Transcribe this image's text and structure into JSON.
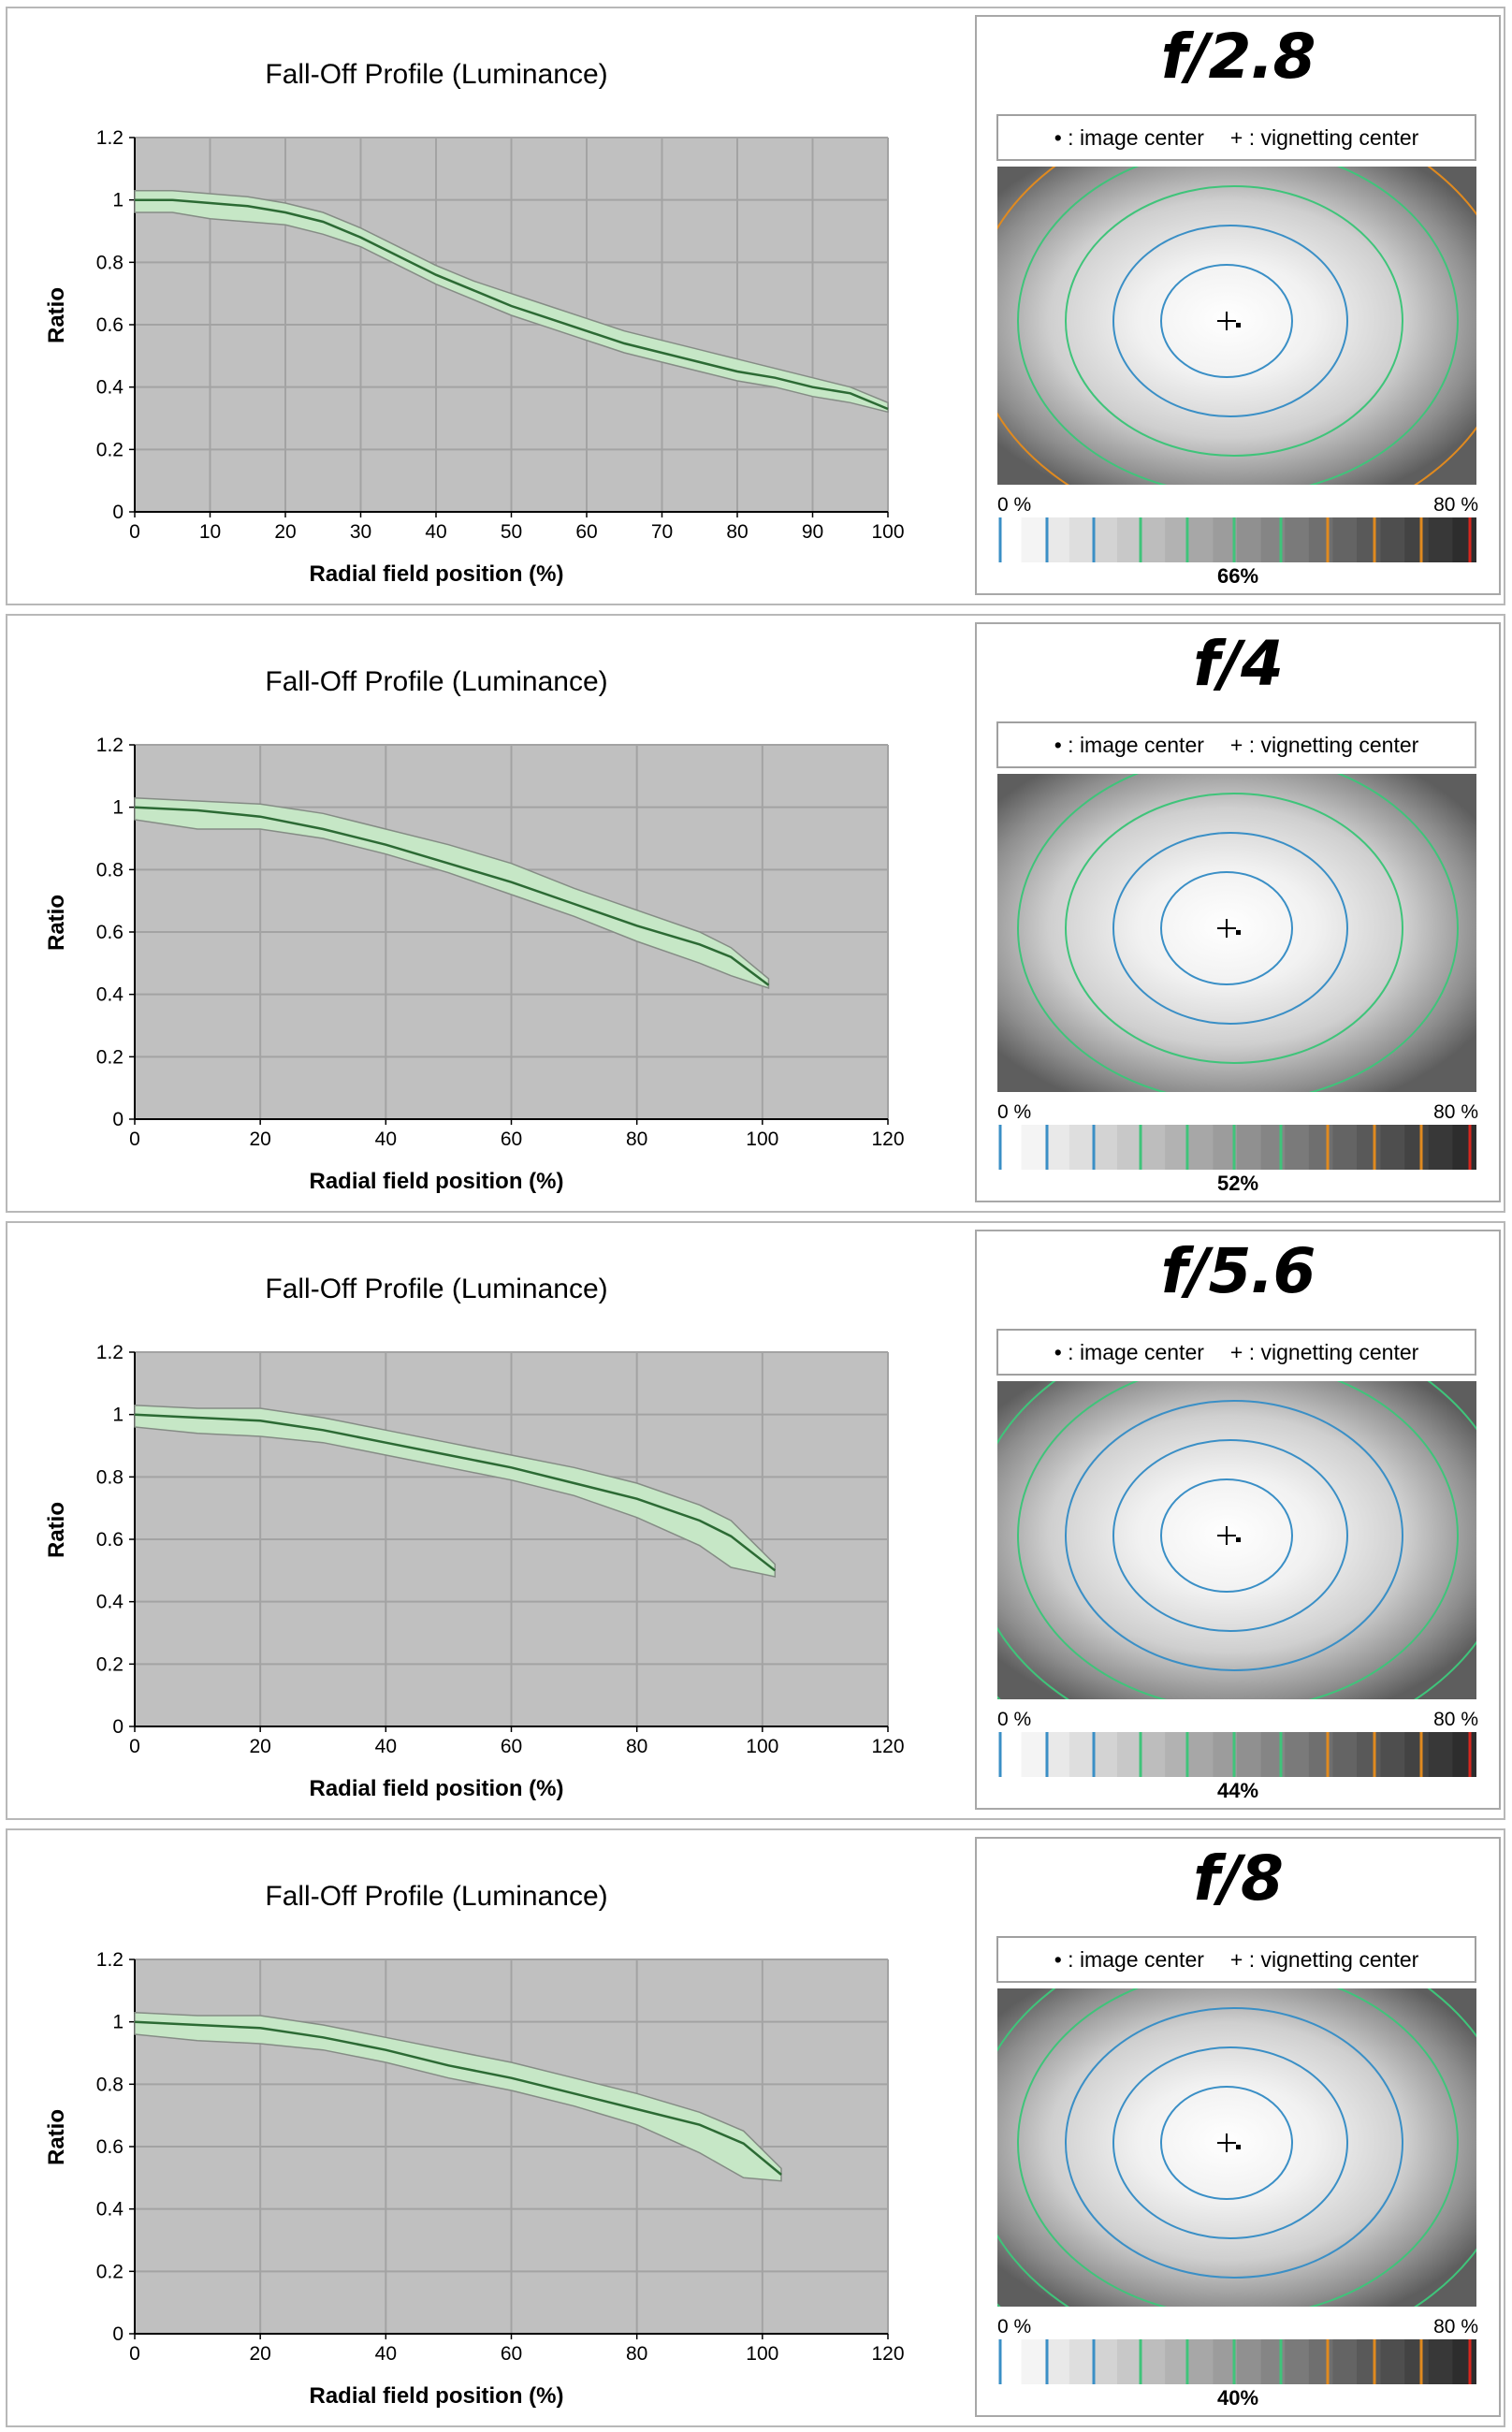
{
  "legend": {
    "image_center": "• : image center",
    "vignetting_center": "+ : vignetting center"
  },
  "scale_labels": {
    "min": "0 %",
    "max": "80 %"
  },
  "colors": {
    "plot_bg": "#c0c0c0",
    "grid": "#a3a3a3",
    "band_fill": "#c6e7c6",
    "band_edge": "#858c85",
    "mean_line": "#2c6a34",
    "contour_blue": "#3a8fc6",
    "contour_green": "#3fc47a",
    "contour_orange": "#e08a1f"
  },
  "panels": [
    {
      "aperture": "f/2.8",
      "vignetting": "66%",
      "contours": [
        "contour_blue",
        "contour_blue",
        "contour_green",
        "contour_green",
        "contour_orange"
      ],
      "chart_data": {
        "type": "area",
        "title": "Fall-Off Profile (Luminance)",
        "xlabel": "Radial field position (%)",
        "ylabel": "Ratio",
        "xlim": [
          0,
          100
        ],
        "ylim": [
          0,
          1.2
        ],
        "xticks": [
          0,
          10,
          20,
          30,
          40,
          50,
          60,
          70,
          80,
          90,
          100
        ],
        "yticks": [
          0,
          0.2,
          0.4,
          0.6,
          0.8,
          1,
          1.2
        ],
        "tick_labels_y": [
          "0",
          "0.2",
          "0.4",
          "0.6",
          "0.8",
          "1",
          "1.2"
        ],
        "grid": true,
        "series": [
          {
            "role": "mean",
            "x": [
              0,
              5,
              10,
              15,
              20,
              25,
              30,
              35,
              40,
              45,
              50,
              55,
              60,
              65,
              70,
              75,
              80,
              85,
              90,
              95,
              100
            ],
            "y": [
              1.0,
              1.0,
              0.99,
              0.98,
              0.96,
              0.93,
              0.88,
              0.82,
              0.76,
              0.71,
              0.66,
              0.62,
              0.58,
              0.54,
              0.51,
              0.48,
              0.45,
              0.43,
              0.4,
              0.38,
              0.33
            ]
          },
          {
            "role": "upper",
            "x": [
              0,
              5,
              10,
              15,
              20,
              25,
              30,
              35,
              40,
              45,
              50,
              55,
              60,
              65,
              70,
              75,
              80,
              85,
              90,
              95,
              100
            ],
            "y": [
              1.03,
              1.03,
              1.02,
              1.01,
              0.99,
              0.96,
              0.91,
              0.85,
              0.79,
              0.74,
              0.7,
              0.66,
              0.62,
              0.58,
              0.55,
              0.52,
              0.49,
              0.46,
              0.43,
              0.4,
              0.35
            ]
          },
          {
            "role": "lower",
            "x": [
              0,
              5,
              10,
              15,
              20,
              25,
              30,
              35,
              40,
              45,
              50,
              55,
              60,
              65,
              70,
              75,
              80,
              85,
              90,
              95,
              100
            ],
            "y": [
              0.96,
              0.96,
              0.94,
              0.93,
              0.92,
              0.89,
              0.85,
              0.79,
              0.73,
              0.68,
              0.63,
              0.59,
              0.55,
              0.51,
              0.48,
              0.45,
              0.42,
              0.4,
              0.37,
              0.35,
              0.32
            ]
          }
        ]
      }
    },
    {
      "aperture": "f/4",
      "vignetting": "52%",
      "contours": [
        "contour_blue",
        "contour_blue",
        "contour_green",
        "contour_green"
      ],
      "chart_data": {
        "type": "area",
        "title": "Fall-Off Profile (Luminance)",
        "xlabel": "Radial field position (%)",
        "ylabel": "Ratio",
        "xlim": [
          0,
          120
        ],
        "ylim": [
          0,
          1.2
        ],
        "xticks": [
          0,
          20,
          40,
          60,
          80,
          100,
          120
        ],
        "yticks": [
          0,
          0.2,
          0.4,
          0.6,
          0.8,
          1,
          1.2
        ],
        "tick_labels_y": [
          "0",
          "0.2",
          "0.4",
          "0.6",
          "0.8",
          "1",
          "1.2"
        ],
        "grid": true,
        "series": [
          {
            "role": "mean",
            "x": [
              0,
              10,
              20,
              30,
              40,
              50,
              60,
              70,
              80,
              90,
              95,
              101
            ],
            "y": [
              1.0,
              0.99,
              0.97,
              0.93,
              0.88,
              0.82,
              0.76,
              0.69,
              0.62,
              0.56,
              0.52,
              0.43
            ]
          },
          {
            "role": "upper",
            "x": [
              0,
              10,
              20,
              30,
              40,
              50,
              60,
              70,
              80,
              90,
              95,
              101
            ],
            "y": [
              1.03,
              1.02,
              1.01,
              0.98,
              0.93,
              0.88,
              0.82,
              0.74,
              0.67,
              0.6,
              0.55,
              0.45
            ]
          },
          {
            "role": "lower",
            "x": [
              0,
              10,
              20,
              30,
              40,
              50,
              60,
              70,
              80,
              90,
              95,
              101
            ],
            "y": [
              0.96,
              0.93,
              0.93,
              0.9,
              0.85,
              0.79,
              0.72,
              0.65,
              0.57,
              0.5,
              0.46,
              0.42
            ]
          }
        ]
      }
    },
    {
      "aperture": "f/5.6",
      "vignetting": "44%",
      "contours": [
        "contour_blue",
        "contour_blue",
        "contour_blue",
        "contour_green",
        "contour_green",
        "contour_green"
      ],
      "chart_data": {
        "type": "area",
        "title": "Fall-Off Profile (Luminance)",
        "xlabel": "Radial field position (%)",
        "ylabel": "Ratio",
        "xlim": [
          0,
          120
        ],
        "ylim": [
          0,
          1.2
        ],
        "xticks": [
          0,
          20,
          40,
          60,
          80,
          100,
          120
        ],
        "yticks": [
          0,
          0.2,
          0.4,
          0.6,
          0.8,
          1,
          1.2
        ],
        "tick_labels_y": [
          "0",
          "0.2",
          "0.4",
          "0.6",
          "0.8",
          "1",
          "1.2"
        ],
        "grid": true,
        "series": [
          {
            "role": "mean",
            "x": [
              0,
              10,
              20,
              30,
              40,
              50,
              60,
              70,
              80,
              90,
              95,
              102
            ],
            "y": [
              1.0,
              0.99,
              0.98,
              0.95,
              0.91,
              0.87,
              0.83,
              0.78,
              0.73,
              0.66,
              0.61,
              0.5
            ]
          },
          {
            "role": "upper",
            "x": [
              0,
              10,
              20,
              30,
              40,
              50,
              60,
              70,
              80,
              90,
              95,
              102
            ],
            "y": [
              1.03,
              1.02,
              1.02,
              0.99,
              0.95,
              0.91,
              0.87,
              0.83,
              0.78,
              0.71,
              0.66,
              0.52
            ]
          },
          {
            "role": "lower",
            "x": [
              0,
              10,
              20,
              30,
              40,
              50,
              60,
              70,
              80,
              90,
              95,
              102
            ],
            "y": [
              0.96,
              0.94,
              0.93,
              0.91,
              0.87,
              0.83,
              0.79,
              0.74,
              0.67,
              0.58,
              0.51,
              0.48
            ]
          }
        ]
      }
    },
    {
      "aperture": "f/8",
      "vignetting": "40%",
      "contours": [
        "contour_blue",
        "contour_blue",
        "contour_blue",
        "contour_green",
        "contour_green",
        "contour_green"
      ],
      "chart_data": {
        "type": "area",
        "title": "Fall-Off Profile (Luminance)",
        "xlabel": "Radial field position (%)",
        "ylabel": "Ratio",
        "xlim": [
          0,
          120
        ],
        "ylim": [
          0,
          1.2
        ],
        "xticks": [
          0,
          20,
          40,
          60,
          80,
          100,
          120
        ],
        "yticks": [
          0,
          0.2,
          0.4,
          0.6,
          0.8,
          1,
          1.2
        ],
        "tick_labels_y": [
          "0",
          "0.2",
          "0.4",
          "0.6",
          "0.8",
          "1",
          "1.2"
        ],
        "grid": true,
        "series": [
          {
            "role": "mean",
            "x": [
              0,
              10,
              20,
              30,
              40,
              50,
              60,
              70,
              80,
              90,
              97,
              103
            ],
            "y": [
              1.0,
              0.99,
              0.98,
              0.95,
              0.91,
              0.86,
              0.82,
              0.77,
              0.72,
              0.67,
              0.61,
              0.51
            ]
          },
          {
            "role": "upper",
            "x": [
              0,
              10,
              20,
              30,
              40,
              50,
              60,
              70,
              80,
              90,
              97,
              103
            ],
            "y": [
              1.03,
              1.02,
              1.02,
              0.99,
              0.95,
              0.91,
              0.87,
              0.82,
              0.77,
              0.71,
              0.65,
              0.53
            ]
          },
          {
            "role": "lower",
            "x": [
              0,
              10,
              20,
              30,
              40,
              50,
              60,
              70,
              80,
              90,
              97,
              103
            ],
            "y": [
              0.96,
              0.94,
              0.93,
              0.91,
              0.87,
              0.82,
              0.78,
              0.73,
              0.67,
              0.58,
              0.5,
              0.49
            ]
          }
        ]
      }
    }
  ]
}
